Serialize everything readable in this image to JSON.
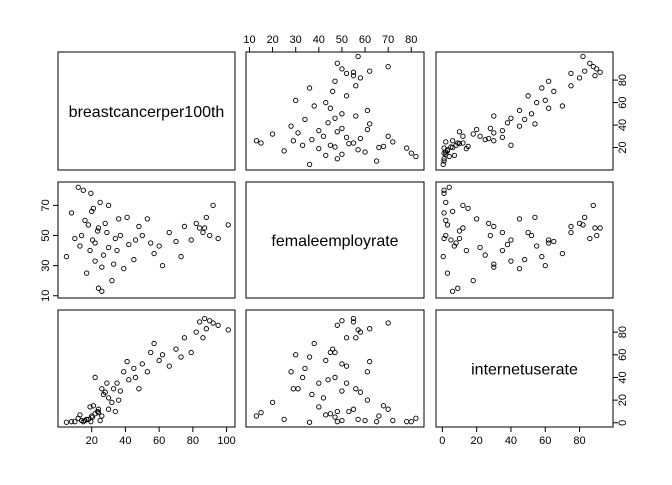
{
  "chart_data": {
    "type": "scatter_matrix",
    "point_color": "#000000",
    "variables": [
      {
        "name": "breastcancerper100th",
        "lim": [
          0,
          105
        ],
        "xticks": [
          20,
          40,
          60,
          80,
          100
        ],
        "yticks": [
          20,
          40,
          60,
          80
        ],
        "values": [
          20.5,
          23.5,
          30,
          33,
          18,
          25,
          19.5,
          16,
          24,
          35,
          46,
          50,
          60,
          70,
          75,
          82,
          84,
          88,
          90,
          92,
          101,
          87,
          62,
          45,
          39,
          27,
          22,
          14,
          10,
          5,
          8,
          12,
          21,
          28,
          32,
          24,
          26,
          37,
          42,
          53,
          57,
          66,
          73,
          79,
          86,
          95,
          36,
          30,
          19,
          17,
          15,
          22,
          29,
          34,
          48,
          55,
          41,
          26,
          20,
          13
        ]
      },
      {
        "name": "femaleemployrate",
        "lim": [
          8.5,
          85.5
        ],
        "xticks": [
          10,
          20,
          30,
          40,
          50,
          60,
          70,
          80
        ],
        "yticks": [
          10,
          30,
          50,
          70
        ],
        "values": [
          47,
          53,
          42,
          31,
          57,
          72,
          78,
          60,
          55,
          40,
          47,
          50,
          43,
          46,
          56,
          58,
          55,
          62,
          50,
          70,
          57,
          55,
          30,
          34,
          28,
          37,
          45,
          50,
          48,
          36,
          65,
          82,
          68,
          58,
          20,
          15,
          13,
          50,
          44,
          61,
          38,
          52,
          36,
          47,
          52,
          48,
          61,
          70,
          40,
          25,
          80,
          33,
          52,
          48,
          56,
          45,
          62,
          29,
          66,
          43
        ]
      },
      {
        "name": "internetuserate",
        "lim": [
          -3.7,
          99.5
        ],
        "xticks": [
          0,
          20,
          40,
          60,
          80
        ],
        "yticks": [
          0,
          20,
          40,
          60,
          80
        ],
        "values": [
          5,
          10,
          22,
          30,
          3,
          2,
          1,
          2,
          12,
          35,
          40,
          52,
          55,
          65,
          75,
          80,
          89,
          83,
          90,
          88,
          82,
          92,
          60,
          48,
          45,
          25,
          8,
          2,
          1,
          0.5,
          1,
          4,
          15,
          27,
          18,
          9,
          6,
          28,
          38,
          45,
          70,
          50,
          58,
          62,
          75,
          86,
          20,
          12,
          14,
          3,
          1,
          40,
          35,
          10,
          30,
          62,
          54,
          30,
          6,
          7
        ]
      }
    ]
  }
}
